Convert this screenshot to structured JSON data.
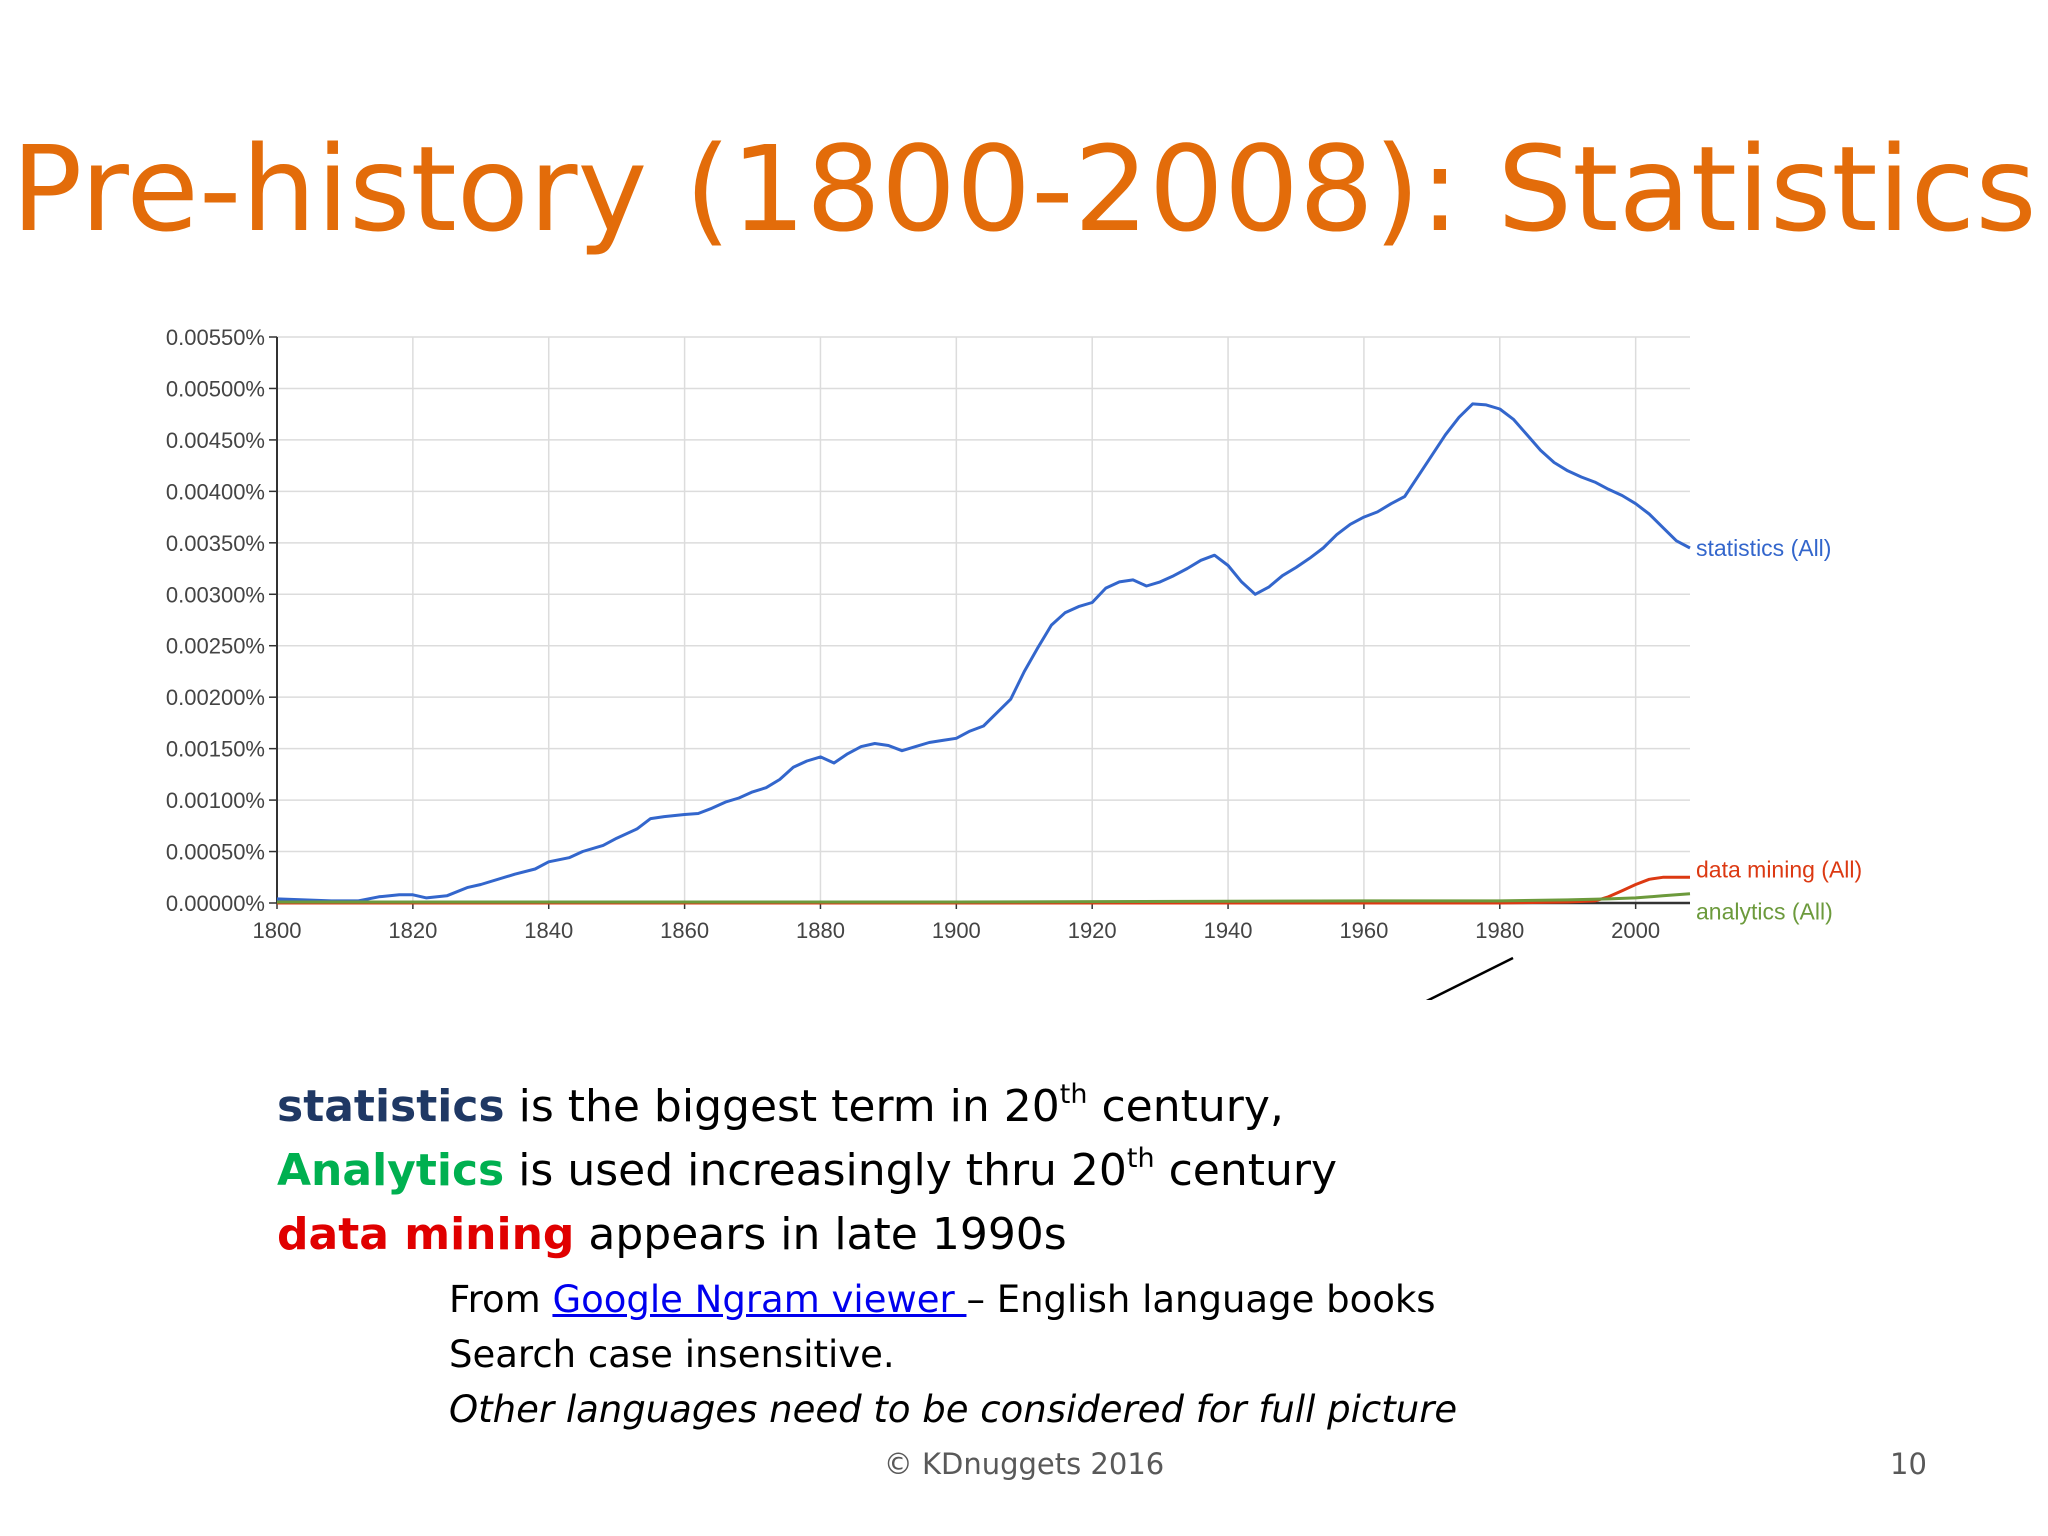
{
  "slide": {
    "title": "Pre-history (1800-2008): Statistics",
    "footer": "© KDnuggets 2016",
    "page_number": "10"
  },
  "notes": {
    "line1": {
      "keyword": "statistics",
      "text_before_sup": " is the biggest term in 20",
      "sup": "th",
      "text_after_sup": " century,"
    },
    "line2": {
      "keyword": "Analytics",
      "text_before_sup": " is used increasingly thru 20",
      "sup": "th",
      "text_after_sup": " century"
    },
    "line3": {
      "keyword": "data mining",
      "text": " appears in late 1990s"
    },
    "sub1": {
      "prefix": "From ",
      "link": "Google Ngram viewer ",
      "suffix": "– English language books"
    },
    "sub2": "Search case insensitive.",
    "sub3": "Other languages need to be considered for full picture"
  },
  "colors": {
    "title": "#e36c0a",
    "statistics": "#3366cc",
    "data_mining": "#dc3912",
    "analytics": "#6c9a3c",
    "keyword_statistics": "#1f3864",
    "keyword_analytics": "#00b050",
    "keyword_data_mining": "#e00000"
  },
  "chart_data": {
    "type": "line",
    "xlim": [
      1800,
      2008
    ],
    "ylim": [
      0,
      0.0055
    ],
    "x_ticks": [
      "1800",
      "1820",
      "1840",
      "1860",
      "1880",
      "1900",
      "1920",
      "1940",
      "1960",
      "1980",
      "2000"
    ],
    "y_ticks": [
      "0.00000%",
      "0.00050%",
      "0.00100%",
      "0.00150%",
      "0.00200%",
      "0.00250%",
      "0.00300%",
      "0.00350%",
      "0.00400%",
      "0.00450%",
      "0.00500%",
      "0.00550%"
    ],
    "grid": true,
    "legend": "end-of-line labels",
    "series": [
      {
        "name": "statistics (All)",
        "x": [
          1800,
          1804,
          1808,
          1812,
          1815,
          1818,
          1820,
          1822,
          1825,
          1828,
          1830,
          1835,
          1838,
          1840,
          1843,
          1845,
          1848,
          1850,
          1853,
          1855,
          1857,
          1860,
          1862,
          1864,
          1866,
          1868,
          1870,
          1872,
          1874,
          1876,
          1878,
          1880,
          1882,
          1884,
          1886,
          1888,
          1890,
          1892,
          1894,
          1896,
          1898,
          1900,
          1902,
          1904,
          1906,
          1908,
          1910,
          1912,
          1914,
          1916,
          1918,
          1920,
          1922,
          1924,
          1926,
          1928,
          1930,
          1932,
          1934,
          1936,
          1938,
          1940,
          1942,
          1944,
          1946,
          1948,
          1950,
          1952,
          1954,
          1956,
          1958,
          1960,
          1962,
          1964,
          1966,
          1968,
          1970,
          1972,
          1974,
          1976,
          1978,
          1980,
          1982,
          1984,
          1986,
          1988,
          1990,
          1992,
          1994,
          1996,
          1998,
          2000,
          2002,
          2004,
          2006,
          2008
        ],
        "values": [
          4e-05,
          3e-05,
          2e-05,
          2e-05,
          6e-05,
          8e-05,
          8e-05,
          5e-05,
          7e-05,
          0.00015,
          0.00018,
          0.00028,
          0.00033,
          0.0004,
          0.00044,
          0.0005,
          0.00056,
          0.00063,
          0.00072,
          0.00082,
          0.00084,
          0.00086,
          0.00087,
          0.00092,
          0.00098,
          0.00102,
          0.00108,
          0.00112,
          0.0012,
          0.00132,
          0.00138,
          0.00142,
          0.00136,
          0.00145,
          0.00152,
          0.00155,
          0.00153,
          0.00148,
          0.00152,
          0.00156,
          0.00158,
          0.0016,
          0.00167,
          0.00172,
          0.00185,
          0.00198,
          0.00225,
          0.00248,
          0.0027,
          0.00282,
          0.00288,
          0.00292,
          0.00306,
          0.00312,
          0.00314,
          0.00308,
          0.00312,
          0.00318,
          0.00325,
          0.00333,
          0.00338,
          0.00328,
          0.00312,
          0.003,
          0.00307,
          0.00318,
          0.00326,
          0.00335,
          0.00345,
          0.00358,
          0.00368,
          0.00375,
          0.0038,
          0.00388,
          0.00395,
          0.00415,
          0.00435,
          0.00455,
          0.00472,
          0.00485,
          0.00484,
          0.0048,
          0.0047,
          0.00455,
          0.0044,
          0.00428,
          0.0042,
          0.00414,
          0.00409,
          0.00402,
          0.00396,
          0.00388,
          0.00378,
          0.00365,
          0.00352,
          0.00345
        ]
      },
      {
        "name": "data mining (All)",
        "x": [
          1800,
          1900,
          1980,
          1990,
          1994,
          1996,
          1998,
          2000,
          2002,
          2004,
          2006,
          2008
        ],
        "values": [
          0,
          0,
          0,
          1e-05,
          2e-05,
          6e-05,
          0.00012,
          0.00018,
          0.00023,
          0.00025,
          0.00025,
          0.00025
        ]
      },
      {
        "name": "analytics (All)",
        "x": [
          1800,
          1850,
          1900,
          1960,
          1980,
          1990,
          1996,
          2000,
          2004,
          2008
        ],
        "values": [
          1e-05,
          1e-05,
          1e-05,
          2e-05,
          2e-05,
          3e-05,
          4e-05,
          5e-05,
          7e-05,
          9e-05
        ]
      }
    ]
  }
}
